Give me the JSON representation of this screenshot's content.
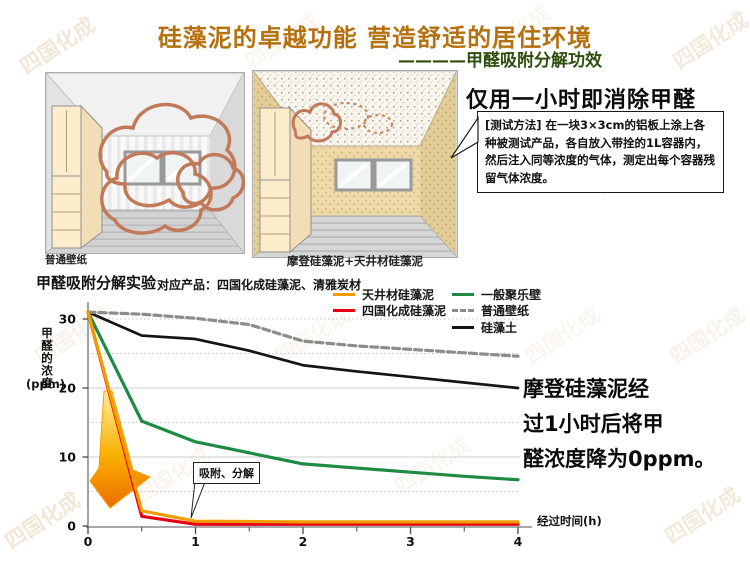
{
  "page": {
    "title": "硅藻泥的卓越功能 营造舒适的居住环境",
    "subtitle": "————甲醛吸附分解功效",
    "watermark_text": "四国化成"
  },
  "rooms": {
    "left_caption": "普通壁纸",
    "right_caption": "摩登硅藻泥+天井材硅藻泥"
  },
  "panel": {
    "headline": "仅用一小时即消除甲醛",
    "test_method": "[测试方法] 在一块3×3cm的铝板上涂上各种被测试产品，各自放入带拴的1L容器内，然后注入同等浓度的气体，测定出每个容器残留气体浓度。",
    "result_note": "摩登硅藻泥经\n过1小时后将甲\n醛浓度降为0ppm。"
  },
  "chart": {
    "title": "甲醛吸附分解实验",
    "subtitle": "对应产品：四国化成硅藻泥、清雅炭材",
    "annotation": "吸附、分解",
    "y_axis_label": "甲醛的浓度",
    "y_axis_unit": "(ppm)",
    "x_axis_label": "经过时间(h)"
  },
  "chart_data": {
    "type": "line",
    "title": "甲醛吸附分解实验",
    "xlabel": "经过时间(h)",
    "ylabel": "甲醛的浓度(ppm)",
    "xlim": [
      0,
      4
    ],
    "ylim": [
      0,
      32
    ],
    "x_ticks": [
      0,
      1,
      2,
      3,
      4
    ],
    "y_ticks": [
      0,
      10,
      20,
      30
    ],
    "grid": "horizontal dotted lines every 5 ppm, lighter solid at 10/20",
    "legend_position": "top-right, two columns",
    "x": [
      0,
      0.5,
      1,
      1.5,
      2,
      2.5,
      3,
      3.5,
      4
    ],
    "series": [
      {
        "name": "天井材硅藻泥",
        "color": "#f29c00",
        "style": "solid",
        "values": [
          31,
          2.2,
          0.7,
          0.65,
          0.6,
          0.6,
          0.6,
          0.6,
          0.6
        ]
      },
      {
        "name": "四国化成硅藻泥",
        "color": "#e60012",
        "style": "solid",
        "values": [
          31,
          1.4,
          0.25,
          0.25,
          0.25,
          0.25,
          0.25,
          0.25,
          0.25
        ]
      },
      {
        "name": "一般聚乐壁",
        "color": "#1f8a44",
        "style": "solid",
        "values": [
          31,
          15.2,
          12.2,
          10.6,
          9.0,
          8.4,
          7.8,
          7.2,
          6.7
        ]
      },
      {
        "name": "普通壁纸",
        "color": "#8c8c8c",
        "style": "dashed",
        "values": [
          31,
          30.7,
          30.1,
          29.2,
          26.8,
          26.1,
          25.6,
          25.1,
          24.6
        ]
      },
      {
        "name": "硅藻土",
        "color": "#141414",
        "style": "solid",
        "values": [
          31,
          27.6,
          27.1,
          25.4,
          23.3,
          22.4,
          21.6,
          20.8,
          20.0
        ]
      }
    ],
    "annotations": [
      {
        "text": "吸附、分解",
        "target_x": 1,
        "target_y": 0.5
      }
    ]
  }
}
